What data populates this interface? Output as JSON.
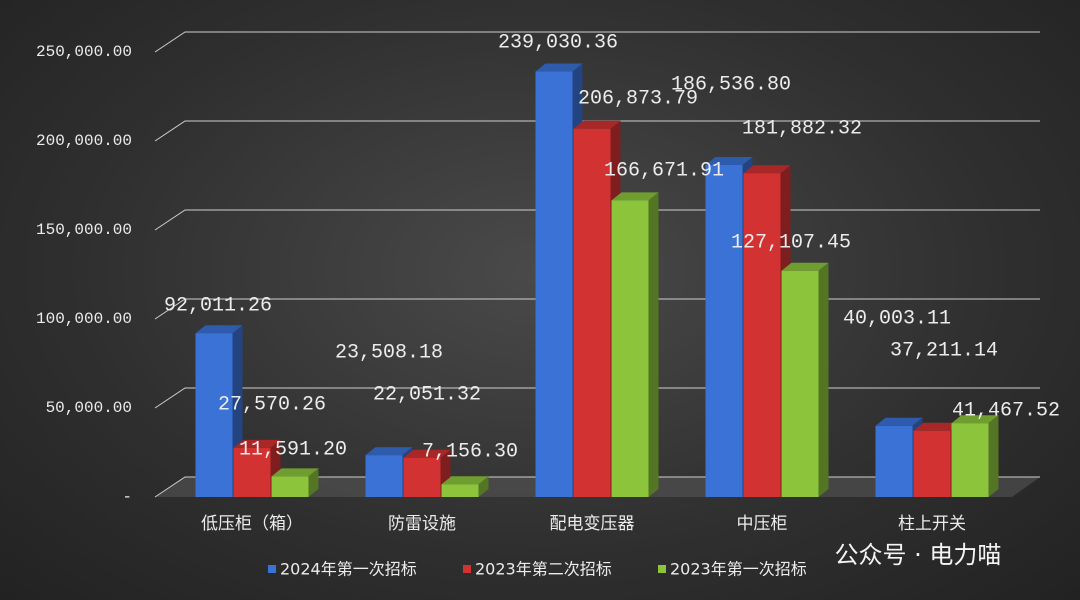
{
  "chart_data": {
    "type": "bar3d",
    "categories": [
      "低压柜（箱）",
      "防雷设施",
      "配电变压器",
      "中压柜",
      "柱上开关"
    ],
    "series": [
      {
        "name": "2024年第一次招标",
        "color": "#3a72d6",
        "values": [
          92011.26,
          23508.18,
          239030.36,
          186536.8,
          40003.11
        ],
        "value_labels": [
          "92,011.26",
          "23,508.18",
          "239,030.36",
          "186,536.80",
          "40,003.11"
        ]
      },
      {
        "name": "2023年第二次招标",
        "color": "#d23232",
        "values": [
          27570.26,
          22051.32,
          206873.79,
          181882.32,
          37211.14
        ],
        "value_labels": [
          "27,570.26",
          "22,051.32",
          "206,873.79",
          "181,882.32",
          "37,211.14"
        ]
      },
      {
        "name": "2023年第一次招标",
        "color": "#8cc43c",
        "values": [
          11591.2,
          7156.3,
          166671.91,
          127107.45,
          41467.52
        ],
        "value_labels": [
          "11,591.20",
          "7,156.30",
          "166,671.91",
          "127,107.45",
          "41,467.52"
        ]
      }
    ],
    "ylim": [
      0,
      250000
    ],
    "yticks": [
      {
        "value": 0,
        "label": "-"
      },
      {
        "value": 50000,
        "label": "50,000.00"
      },
      {
        "value": 100000,
        "label": "100,000.00"
      },
      {
        "value": 150000,
        "label": "150,000.00"
      },
      {
        "value": 200000,
        "label": "200,000.00"
      },
      {
        "value": 250000,
        "label": "250,000.00"
      }
    ],
    "grid": true,
    "legend": "bottom",
    "watermark": "公众号 · 电力喵"
  }
}
